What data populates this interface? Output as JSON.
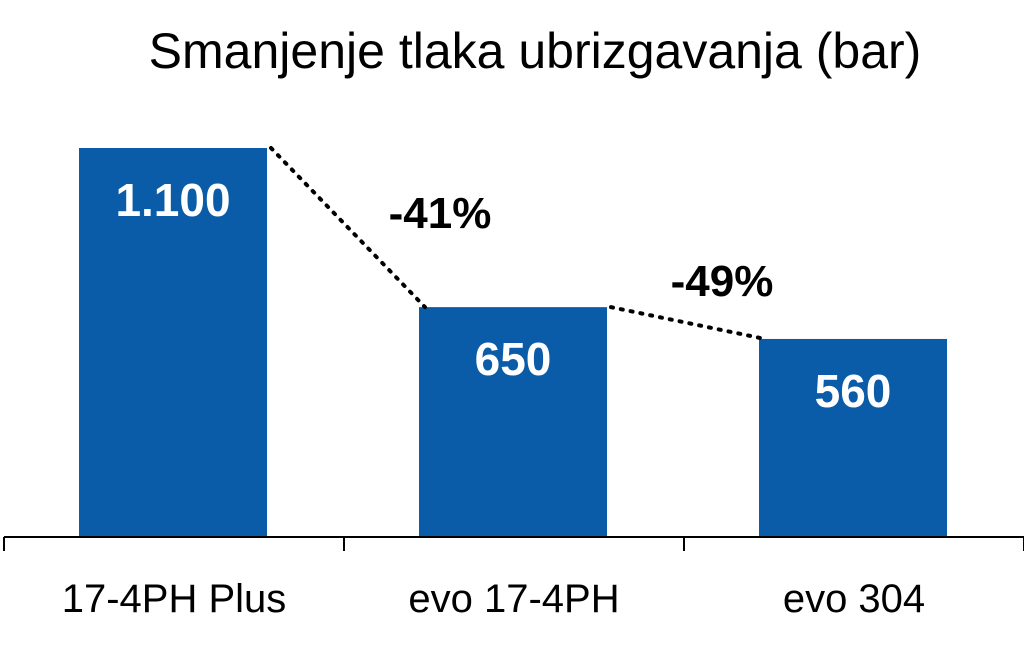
{
  "chart_data": {
    "type": "bar",
    "title": "Smanjenje tlaka ubrizgavanja (bar)",
    "categories": [
      "17-4PH Plus",
      "evo 17-4PH",
      "evo 304"
    ],
    "values": [
      1100,
      650,
      560
    ],
    "value_labels": [
      "1.100",
      "650",
      "560"
    ],
    "annotations": [
      "-41%",
      "-49%"
    ],
    "bar_color": "#0a5ba8",
    "ylim": [
      0,
      1200
    ]
  }
}
